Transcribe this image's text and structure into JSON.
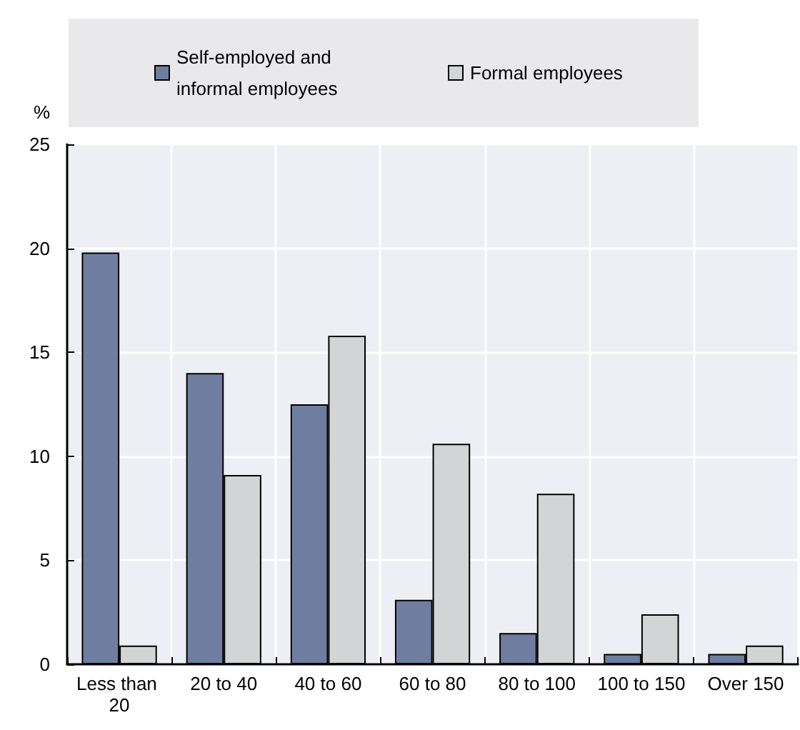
{
  "chart_data": {
    "type": "bar",
    "ylabel": "%",
    "categories": [
      "Less than 20",
      "20 to 40",
      "40 to 60",
      "60 to 80",
      "80 to 100",
      "100 to 150",
      "Over 150"
    ],
    "series": [
      {
        "name": "Self-employed and informal employees",
        "color": "#6f7ea0",
        "values": [
          19.8,
          14.0,
          12.5,
          3.1,
          1.5,
          0.5,
          0.5
        ]
      },
      {
        "name": "Formal employees",
        "color": "#d3d4d6",
        "values": [
          0.9,
          9.1,
          15.8,
          10.6,
          8.2,
          2.4,
          0.9
        ]
      }
    ],
    "ylim": [
      0,
      25
    ],
    "yticks": [
      0,
      5,
      10,
      15,
      20,
      25
    ],
    "grid": true,
    "legend": "top"
  }
}
